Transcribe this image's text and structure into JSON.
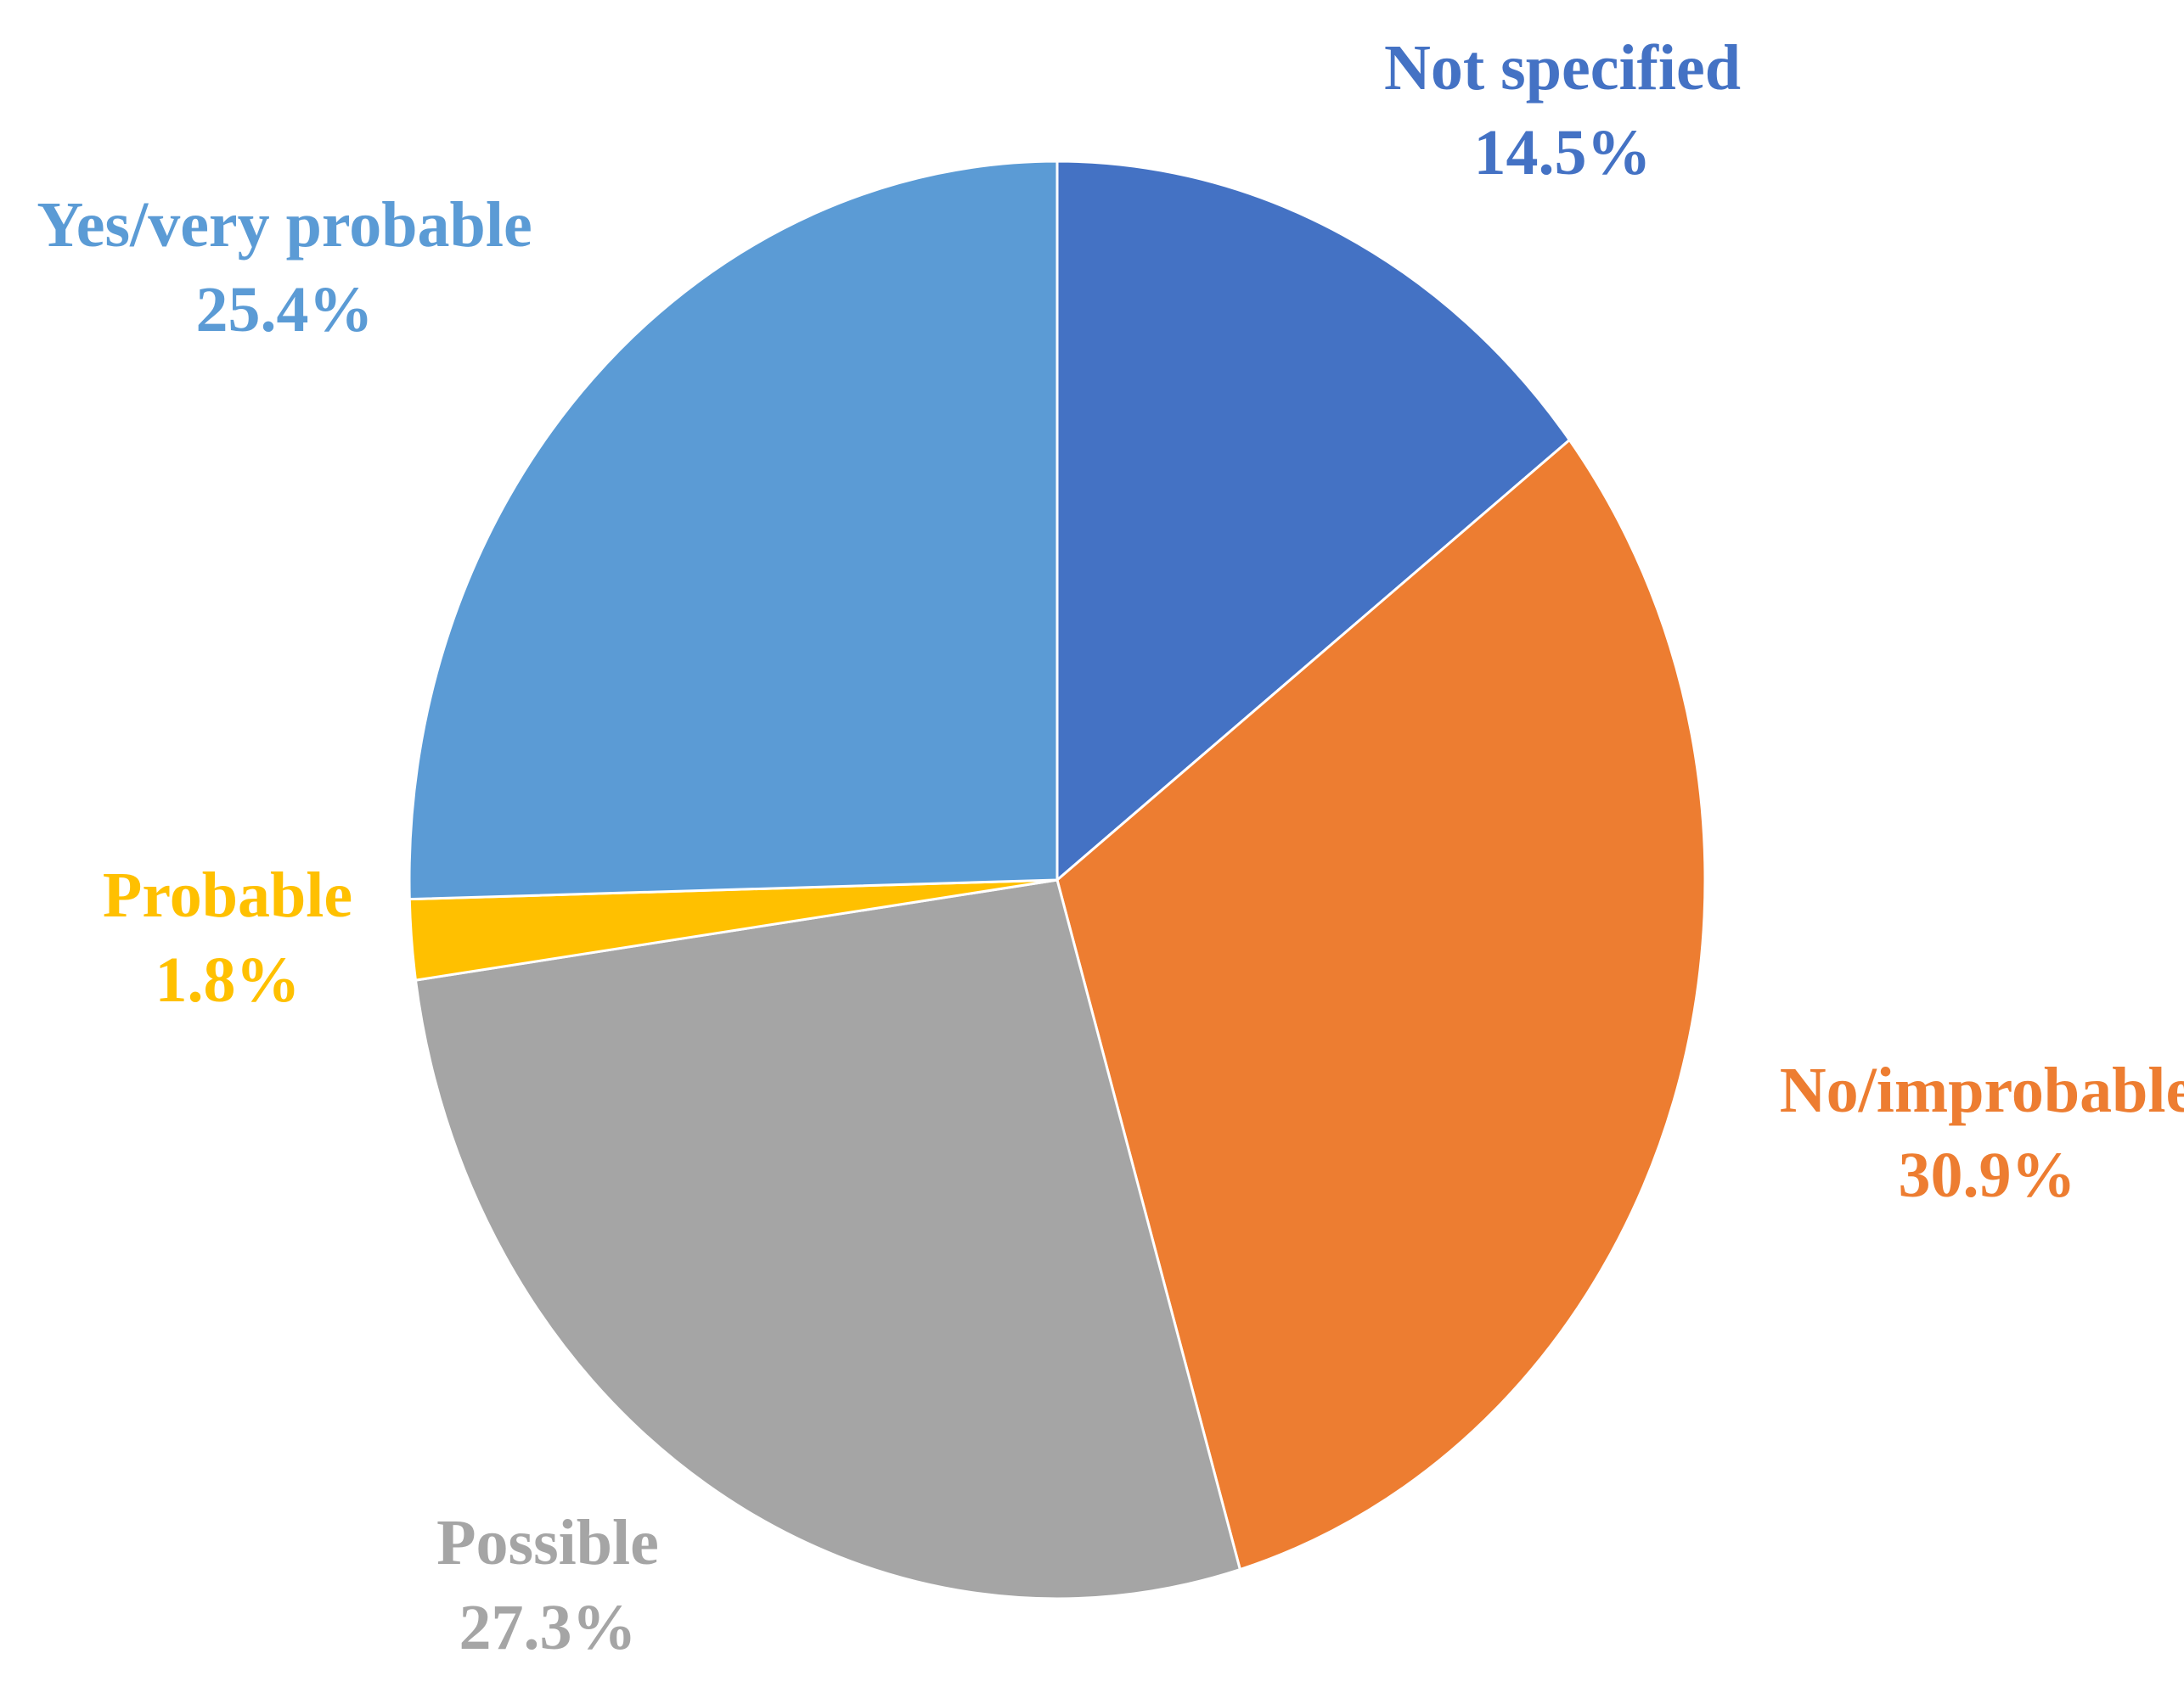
{
  "chart_data": {
    "type": "pie",
    "slices": [
      {
        "label": "Not specified",
        "value": 14.5,
        "value_label": "14.5%",
        "color": "#4472C4"
      },
      {
        "label": "No/improbable",
        "value": 30.9,
        "value_label": "30.9%",
        "color": "#ED7D31"
      },
      {
        "label": "Possible",
        "value": 27.3,
        "value_label": "27.3%",
        "color": "#A5A5A5"
      },
      {
        "label": "Probable",
        "value": 1.8,
        "value_label": "1.8%",
        "color": "#FFC000"
      },
      {
        "label": "Yes/very probable",
        "value": 25.4,
        "value_label": "25.4%",
        "color": "#5B9BD5"
      }
    ],
    "start_angle": "12 o'clock",
    "direction": "clockwise",
    "legend": "none",
    "data_labels": "outside"
  }
}
